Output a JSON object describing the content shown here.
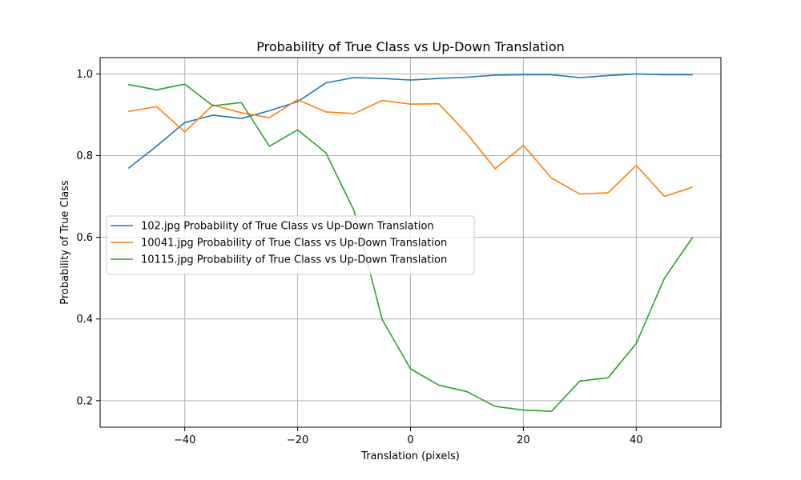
{
  "chart_data": {
    "type": "line",
    "title": "Probability of True Class vs Up-Down Translation",
    "xlabel": "Translation (pixels)",
    "ylabel": "Probability of True Class",
    "xlim": [
      -55,
      55
    ],
    "ylim": [
      0.135,
      1.04
    ],
    "xticks": [
      -40,
      -20,
      0,
      20,
      40
    ],
    "yticks": [
      0.2,
      0.4,
      0.6,
      0.8,
      1.0
    ],
    "xtick_labels": [
      "−40",
      "−20",
      "0",
      "20",
      "40"
    ],
    "ytick_labels": [
      "0.2",
      "0.4",
      "0.6",
      "0.8",
      "1.0"
    ],
    "grid": true,
    "legend_position": "center-left",
    "x": [
      -50,
      -45,
      -40,
      -35,
      -30,
      -25,
      -20,
      -15,
      -10,
      -5,
      0,
      5,
      10,
      15,
      20,
      25,
      30,
      35,
      40,
      45,
      50
    ],
    "series": [
      {
        "name": "102.jpg Probability of True Class vs Up-Down Translation",
        "color": "#1f77b4",
        "values": [
          0.769,
          0.823,
          0.881,
          0.899,
          0.891,
          0.91,
          0.932,
          0.978,
          0.991,
          0.989,
          0.985,
          0.989,
          0.992,
          0.997,
          0.998,
          0.998,
          0.991,
          0.996,
          1.0,
          0.998,
          0.998
        ]
      },
      {
        "name": "10041.jpg Probability of True Class vs Up-Down Translation",
        "color": "#ff7f0e",
        "values": [
          0.908,
          0.92,
          0.858,
          0.924,
          0.905,
          0.893,
          0.937,
          0.907,
          0.903,
          0.935,
          0.926,
          0.927,
          0.854,
          0.768,
          0.825,
          0.745,
          0.706,
          0.709,
          0.776,
          0.7,
          0.723
        ]
      },
      {
        "name": "10115.jpg Probability of True Class vs Up-Down Translation",
        "color": "#2ca02c",
        "values": [
          0.974,
          0.961,
          0.975,
          0.922,
          0.93,
          0.823,
          0.863,
          0.807,
          0.665,
          0.398,
          0.278,
          0.238,
          0.222,
          0.186,
          0.177,
          0.174,
          0.248,
          0.256,
          0.34,
          0.5,
          0.6
        ]
      }
    ]
  }
}
